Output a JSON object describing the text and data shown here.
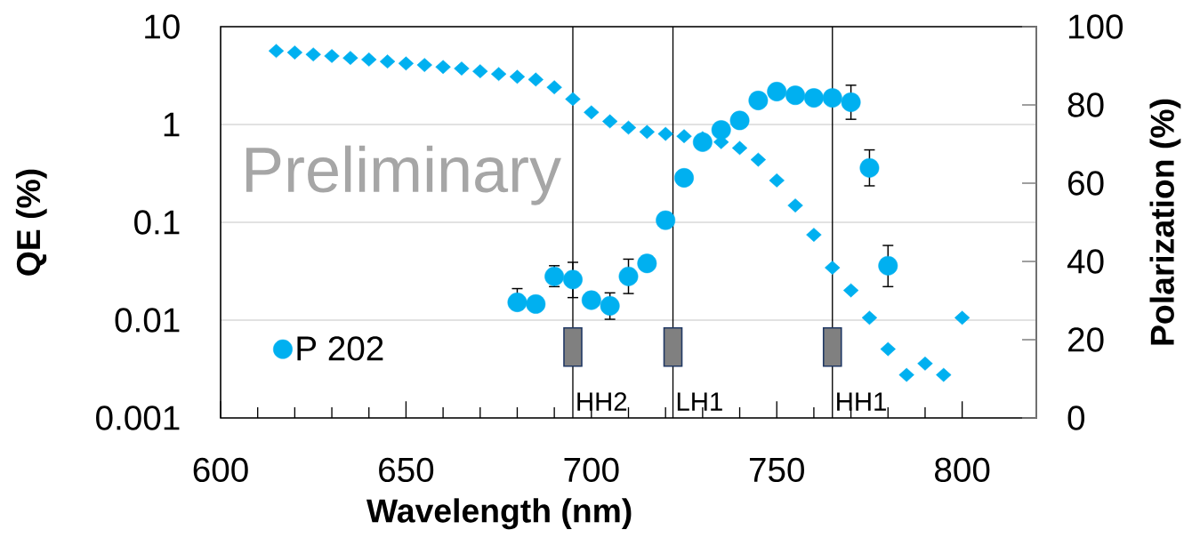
{
  "chart_data": {
    "type": "scatter",
    "xlabel": "Wavelength (nm)",
    "ylabel": "QE (%)",
    "y2label": "Polarization (%)",
    "xlim": [
      600,
      820
    ],
    "xticks": [
      600,
      650,
      700,
      750,
      800
    ],
    "ylim": [
      0.001,
      10
    ],
    "yticks": [
      0.001,
      0.01,
      0.1,
      1,
      10
    ],
    "y2lim": [
      0,
      100
    ],
    "y2ticks": [
      0,
      20,
      40,
      60,
      80,
      100
    ],
    "log": "y",
    "grid": "y",
    "legend": "bottom left",
    "series": [
      {
        "name": "P 202",
        "marker": "circle",
        "color": "#00b0f0",
        "x": [
          680,
          685,
          690,
          695,
          700,
          705,
          710,
          715,
          720,
          725,
          730,
          735,
          740,
          745,
          750,
          755,
          760,
          765,
          770,
          775,
          780
        ],
        "values": [
          0.0152,
          0.0146,
          0.028,
          0.026,
          0.016,
          0.014,
          0.028,
          0.038,
          0.105,
          0.285,
          0.66,
          0.88,
          1.1,
          1.76,
          2.17,
          1.99,
          1.87,
          1.87,
          1.69,
          0.36,
          0.036
        ],
        "errors": [
          [
            0.0129,
            0.021
          ],
          null,
          [
            0.022,
            0.036
          ],
          [
            0.017,
            0.039
          ],
          null,
          [
            0.0102,
            0.019
          ],
          [
            0.0187,
            0.042
          ],
          null,
          null,
          null,
          null,
          null,
          null,
          null,
          null,
          null,
          null,
          null,
          [
            1.13,
            2.52
          ],
          [
            0.236,
            0.55
          ],
          [
            0.022,
            0.058
          ]
        ]
      },
      {
        "marker": "diamond",
        "color": "#00b0f0",
        "axis": "y2",
        "x": [
          615,
          620,
          625,
          630,
          635,
          640,
          645,
          650,
          655,
          660,
          665,
          670,
          675,
          680,
          685,
          690,
          695,
          700,
          705,
          710,
          715,
          720,
          725,
          730,
          735,
          740,
          745,
          750,
          755,
          760,
          765,
          770,
          775,
          780,
          785,
          790,
          795,
          800
        ],
        "values": [
          93.8,
          93.4,
          92.9,
          92.5,
          92.0,
          91.6,
          91.1,
          90.6,
          90.2,
          89.7,
          89.3,
          88.6,
          87.9,
          87.2,
          86.5,
          84.5,
          81.5,
          78.1,
          75.8,
          74.2,
          73.1,
          72.6,
          72.0,
          71.5,
          70.5,
          69.0,
          66.0,
          60.7,
          54.3,
          46.8,
          38.4,
          32.6,
          25.6,
          17.6,
          11.0,
          13.9,
          11.0,
          25.6
        ]
      },
      {
        "marker": "square",
        "color": "#808080",
        "x": [
          695,
          722,
          765
        ],
        "values": [
          0.0053,
          0.0053,
          0.0053
        ]
      }
    ],
    "ref_lines": [
      {
        "axis": "x",
        "value": 695,
        "label": "HH2",
        "color": "#000000"
      },
      {
        "axis": "x",
        "value": 722,
        "label": "LH1",
        "color": "#000000"
      },
      {
        "axis": "x",
        "value": 765,
        "label": "HH1",
        "color": "#000000"
      }
    ],
    "annotations": [
      "Preliminary"
    ]
  }
}
